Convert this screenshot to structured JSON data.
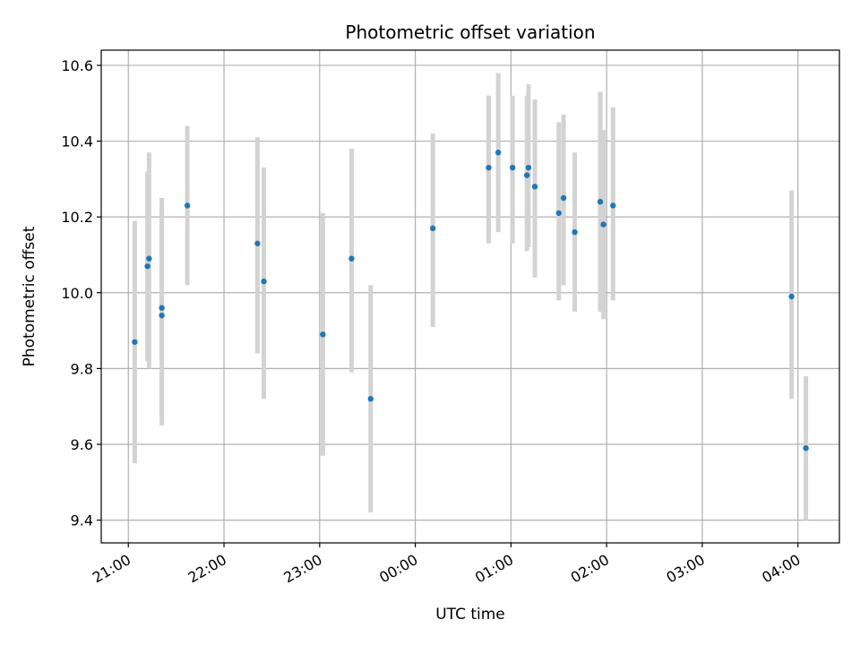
{
  "chart_data": {
    "type": "scatter",
    "title": "Photometric offset variation",
    "xlabel": "UTC time",
    "ylabel": "Photometric offset",
    "xlim": [
      "20:43",
      "28:26"
    ],
    "ylim": [
      9.34,
      10.64
    ],
    "grid": true,
    "x_tick_labels": [
      "21:00",
      "22:00",
      "23:00",
      "00:00",
      "01:00",
      "02:00",
      "03:00",
      "04:00"
    ],
    "y_tick_labels": [
      "9.4",
      "9.6",
      "9.8",
      "10.0",
      "10.2",
      "10.4",
      "10.6"
    ],
    "y_ticks": [
      9.4,
      9.6,
      9.8,
      10.0,
      10.2,
      10.4,
      10.6
    ],
    "colors": {
      "points": "#1f77b4",
      "error_bars": "#d3d3d3",
      "grid": "#b0b0b0"
    },
    "series": [
      {
        "points": [
          {
            "x": "21:04",
            "y": 9.87,
            "ymin": 9.55,
            "ymax": 10.19
          },
          {
            "x": "21:12",
            "y": 10.07,
            "ymin": 9.82,
            "ymax": 10.32
          },
          {
            "x": "21:13",
            "y": 10.09,
            "ymin": 9.8,
            "ymax": 10.37
          },
          {
            "x": "21:21",
            "y": 9.96,
            "ymin": 9.65,
            "ymax": 10.25
          },
          {
            "x": "21:21",
            "y": 9.94,
            "ymin": 9.66,
            "ymax": 10.23
          },
          {
            "x": "21:37",
            "y": 10.23,
            "ymin": 10.02,
            "ymax": 10.44
          },
          {
            "x": "22:21",
            "y": 10.13,
            "ymin": 9.84,
            "ymax": 10.41
          },
          {
            "x": "22:25",
            "y": 10.03,
            "ymin": 9.72,
            "ymax": 10.33
          },
          {
            "x": "23:02",
            "y": 9.89,
            "ymin": 9.57,
            "ymax": 10.21
          },
          {
            "x": "23:20",
            "y": 10.09,
            "ymin": 9.79,
            "ymax": 10.38
          },
          {
            "x": "23:32",
            "y": 9.72,
            "ymin": 9.42,
            "ymax": 10.02
          },
          {
            "x": "24:11",
            "y": 10.17,
            "ymin": 9.91,
            "ymax": 10.42
          },
          {
            "x": "24:46",
            "y": 10.33,
            "ymin": 10.13,
            "ymax": 10.52
          },
          {
            "x": "24:52",
            "y": 10.37,
            "ymin": 10.16,
            "ymax": 10.58
          },
          {
            "x": "25:01",
            "y": 10.33,
            "ymin": 10.13,
            "ymax": 10.52
          },
          {
            "x": "25:10",
            "y": 10.31,
            "ymin": 10.11,
            "ymax": 10.52
          },
          {
            "x": "25:11",
            "y": 10.33,
            "ymin": 10.12,
            "ymax": 10.55
          },
          {
            "x": "25:15",
            "y": 10.28,
            "ymin": 10.04,
            "ymax": 10.51
          },
          {
            "x": "25:30",
            "y": 10.21,
            "ymin": 9.98,
            "ymax": 10.45
          },
          {
            "x": "25:33",
            "y": 10.25,
            "ymin": 10.02,
            "ymax": 10.47
          },
          {
            "x": "25:40",
            "y": 10.16,
            "ymin": 9.95,
            "ymax": 10.37
          },
          {
            "x": "25:56",
            "y": 10.24,
            "ymin": 9.95,
            "ymax": 10.53
          },
          {
            "x": "25:58",
            "y": 10.18,
            "ymin": 9.93,
            "ymax": 10.43
          },
          {
            "x": "26:04",
            "y": 10.23,
            "ymin": 9.98,
            "ymax": 10.49
          },
          {
            "x": "27:56",
            "y": 9.99,
            "ymin": 9.72,
            "ymax": 10.27
          },
          {
            "x": "28:05",
            "y": 9.59,
            "ymin": 9.4,
            "ymax": 9.78
          }
        ]
      }
    ]
  }
}
